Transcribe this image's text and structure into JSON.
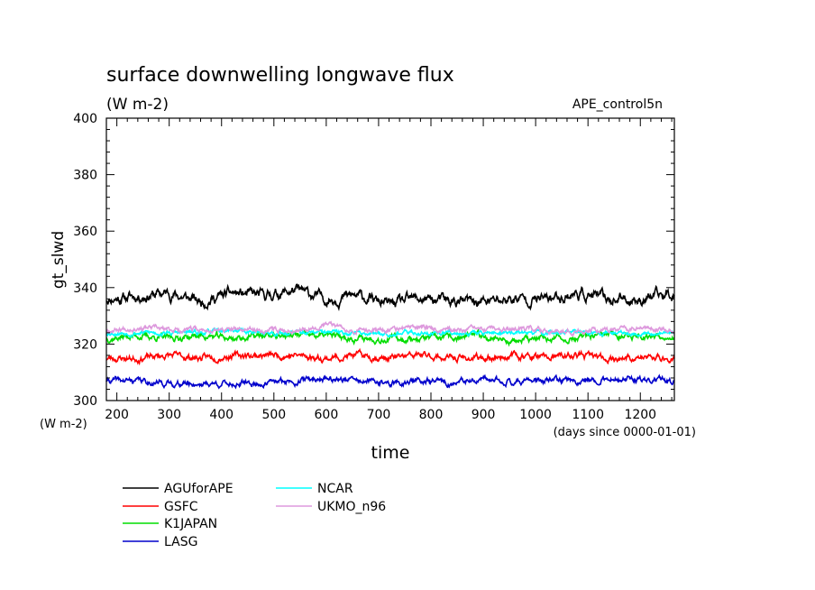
{
  "chart_data": {
    "type": "line",
    "title": "surface downwelling longwave flux",
    "units": "(W m-2)",
    "run_label": "APE_control5n",
    "ylabel": "gt_slwd",
    "y_units_label": "(W m-2)",
    "xlabel": "time",
    "x_units_label": "(days since 0000-01-01)",
    "xlim": [
      180,
      1265
    ],
    "ylim": [
      300,
      400
    ],
    "x_ticks": [
      200,
      300,
      400,
      500,
      600,
      700,
      800,
      900,
      1000,
      1100,
      1200
    ],
    "y_ticks": [
      300,
      320,
      340,
      360,
      380,
      400
    ],
    "grid": false,
    "legend_position": "bottom-left, below plot",
    "series": [
      {
        "name": "AGUforAPE",
        "color": "#000000",
        "mean": 336.5,
        "amp": 2.2,
        "seed": 11,
        "x": [
          180,
          240,
          300,
          360,
          420,
          480,
          540,
          600,
          660,
          720,
          780,
          840,
          900,
          960,
          1020,
          1080,
          1140,
          1200,
          1265
        ],
        "y": [
          336,
          337,
          338,
          335,
          338,
          337,
          339,
          336,
          337,
          334,
          336,
          335,
          335,
          336,
          336,
          338,
          336,
          336,
          338
        ]
      },
      {
        "name": "GSFC",
        "color": "#ff0000",
        "mean": 315.5,
        "amp": 1.3,
        "seed": 23,
        "x": [
          180,
          240,
          300,
          360,
          420,
          480,
          540,
          600,
          660,
          720,
          780,
          840,
          900,
          960,
          1020,
          1080,
          1140,
          1200,
          1265
        ],
        "y": [
          315,
          315,
          316,
          315,
          316,
          316,
          316,
          315,
          316,
          315,
          316,
          315,
          315,
          316,
          315,
          316,
          315,
          315,
          315
        ]
      },
      {
        "name": "K1JAPAN",
        "color": "#00dd00",
        "mean": 322.5,
        "amp": 1.3,
        "seed": 37,
        "x": [
          180,
          240,
          300,
          360,
          420,
          480,
          540,
          600,
          660,
          720,
          780,
          840,
          900,
          960,
          1020,
          1080,
          1140,
          1200,
          1265
        ],
        "y": [
          322,
          323,
          322,
          323,
          322,
          323,
          323,
          323,
          322,
          322,
          322,
          322,
          323,
          321,
          322,
          322,
          323,
          323,
          323
        ]
      },
      {
        "name": "LASG",
        "color": "#0000cc",
        "mean": 306.8,
        "amp": 1.2,
        "seed": 41,
        "x": [
          180,
          240,
          300,
          360,
          420,
          480,
          540,
          600,
          660,
          720,
          780,
          840,
          900,
          960,
          1020,
          1080,
          1140,
          1200,
          1265
        ],
        "y": [
          307,
          307,
          306,
          306,
          306,
          306,
          307,
          308,
          307,
          306,
          307,
          306,
          307,
          307,
          307,
          307,
          308,
          307,
          307
        ]
      },
      {
        "name": "NCAR",
        "color": "#00ffff",
        "mean": 324.2,
        "amp": 0.9,
        "seed": 53,
        "x": [
          180,
          240,
          300,
          360,
          420,
          480,
          540,
          600,
          660,
          720,
          780,
          840,
          900,
          960,
          1020,
          1080,
          1140,
          1200,
          1265
        ],
        "y": [
          324,
          324,
          324,
          324,
          325,
          324,
          324,
          324,
          324,
          324,
          324,
          324,
          324,
          324,
          324,
          324,
          324,
          324,
          324
        ]
      },
      {
        "name": "UKMO_n96",
        "color": "#dd99dd",
        "mean": 325.2,
        "amp": 1.0,
        "seed": 67,
        "x": [
          180,
          240,
          300,
          360,
          420,
          480,
          540,
          600,
          660,
          720,
          780,
          840,
          900,
          960,
          1020,
          1080,
          1140,
          1200,
          1265
        ],
        "y": [
          325,
          326,
          325,
          325,
          325,
          325,
          325,
          327,
          325,
          325,
          326,
          325,
          325,
          325,
          325,
          325,
          325,
          326,
          325
        ]
      }
    ]
  }
}
